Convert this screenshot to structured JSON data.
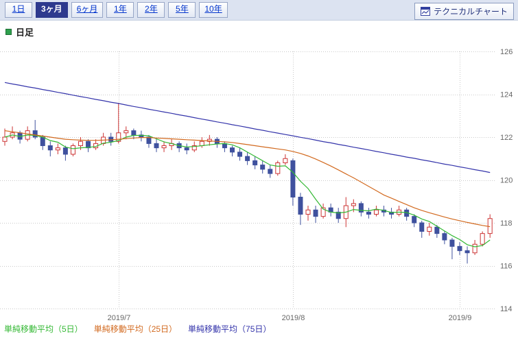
{
  "toolbar": {
    "tabs": [
      {
        "label": "1日",
        "selected": false
      },
      {
        "label": "3ヶ月",
        "selected": true
      },
      {
        "label": "6ヶ月",
        "selected": false
      },
      {
        "label": "1年",
        "selected": false
      },
      {
        "label": "2年",
        "selected": false
      },
      {
        "label": "5年",
        "selected": false
      },
      {
        "label": "10年",
        "selected": false
      }
    ],
    "technical_chart_button": "テクニカルチャート"
  },
  "chart_header": {
    "label": "日足"
  },
  "legend": [
    {
      "label": "単純移動平均（5日）",
      "color": "#33b833"
    },
    {
      "label": "単純移動平均（25日）",
      "color": "#d2691e"
    },
    {
      "label": "単純移動平均（75日）",
      "color": "#3333aa"
    }
  ],
  "chart_data": {
    "type": "candlestick",
    "title": "日足",
    "xlabel": "",
    "ylabel": "",
    "ylim": [
      114,
      126
    ],
    "yticks": [
      114,
      116,
      118,
      120,
      122,
      124,
      126
    ],
    "y_axis_side": "right",
    "grid": "dotted",
    "x_gridlines": [
      {
        "index": 15,
        "label": "2019/7"
      },
      {
        "index": 38,
        "label": "2019/8"
      },
      {
        "index": 60,
        "label": "2019/9"
      }
    ],
    "up_color": "#cc3333",
    "down_color": "#3f519e",
    "candles": [
      [
        121.8,
        122.4,
        121.6,
        122.0
      ],
      [
        122.0,
        122.5,
        121.9,
        122.2
      ],
      [
        122.2,
        122.3,
        121.7,
        121.9
      ],
      [
        121.9,
        122.5,
        121.8,
        122.3
      ],
      [
        122.3,
        122.8,
        121.9,
        122.0
      ],
      [
        122.0,
        122.1,
        121.4,
        121.6
      ],
      [
        121.6,
        121.8,
        121.1,
        121.4
      ],
      [
        121.4,
        121.7,
        121.2,
        121.5
      ],
      [
        121.5,
        121.6,
        120.9,
        121.2
      ],
      [
        121.2,
        121.7,
        121.1,
        121.6
      ],
      [
        121.6,
        122.0,
        121.4,
        121.8
      ],
      [
        121.8,
        121.9,
        121.3,
        121.5
      ],
      [
        121.5,
        121.9,
        121.4,
        121.7
      ],
      [
        121.7,
        122.2,
        121.6,
        122.0
      ],
      [
        122.0,
        122.2,
        121.6,
        121.8
      ],
      [
        121.8,
        123.6,
        121.7,
        122.2
      ],
      [
        122.2,
        122.5,
        121.9,
        122.3
      ],
      [
        122.3,
        122.4,
        121.9,
        122.1
      ],
      [
        122.1,
        122.3,
        121.8,
        122.0
      ],
      [
        122.0,
        122.1,
        121.5,
        121.7
      ],
      [
        121.7,
        121.9,
        121.3,
        121.5
      ],
      [
        121.5,
        121.8,
        121.3,
        121.6
      ],
      [
        121.6,
        121.9,
        121.4,
        121.7
      ],
      [
        121.7,
        121.8,
        121.3,
        121.5
      ],
      [
        121.5,
        121.7,
        121.2,
        121.4
      ],
      [
        121.4,
        121.8,
        121.3,
        121.6
      ],
      [
        121.6,
        122.0,
        121.5,
        121.8
      ],
      [
        121.8,
        122.1,
        121.6,
        121.9
      ],
      [
        121.9,
        122.0,
        121.5,
        121.7
      ],
      [
        121.7,
        121.8,
        121.3,
        121.5
      ],
      [
        121.5,
        121.6,
        121.1,
        121.3
      ],
      [
        121.3,
        121.5,
        120.9,
        121.1
      ],
      [
        121.1,
        121.3,
        120.7,
        120.9
      ],
      [
        120.9,
        121.1,
        120.5,
        120.7
      ],
      [
        120.7,
        120.9,
        120.3,
        120.5
      ],
      [
        120.5,
        120.7,
        120.1,
        120.3
      ],
      [
        120.3,
        120.9,
        120.2,
        120.8
      ],
      [
        120.8,
        121.2,
        120.7,
        121.0
      ],
      [
        120.9,
        121.0,
        118.8,
        119.2
      ],
      [
        119.2,
        119.4,
        117.9,
        118.4
      ],
      [
        118.4,
        118.8,
        118.1,
        118.6
      ],
      [
        118.6,
        118.8,
        118.0,
        118.3
      ],
      [
        118.3,
        118.9,
        118.2,
        118.7
      ],
      [
        118.7,
        118.9,
        118.3,
        118.5
      ],
      [
        118.5,
        118.7,
        118.0,
        118.2
      ],
      [
        118.2,
        119.2,
        117.8,
        118.8
      ],
      [
        118.8,
        119.1,
        118.5,
        118.9
      ],
      [
        118.9,
        119.0,
        118.3,
        118.5
      ],
      [
        118.5,
        118.7,
        118.2,
        118.4
      ],
      [
        118.4,
        118.8,
        118.3,
        118.6
      ],
      [
        118.6,
        118.8,
        118.3,
        118.5
      ],
      [
        118.5,
        118.7,
        118.2,
        118.4
      ],
      [
        118.4,
        118.8,
        118.3,
        118.6
      ],
      [
        118.6,
        118.7,
        118.1,
        118.3
      ],
      [
        118.3,
        118.4,
        117.8,
        118.0
      ],
      [
        118.0,
        118.1,
        117.3,
        117.6
      ],
      [
        117.6,
        118.0,
        117.4,
        117.8
      ],
      [
        117.8,
        117.9,
        117.3,
        117.5
      ],
      [
        117.5,
        117.6,
        117.0,
        117.2
      ],
      [
        117.2,
        117.3,
        116.3,
        116.9
      ],
      [
        116.9,
        117.1,
        116.5,
        116.7
      ],
      [
        116.7,
        116.9,
        116.1,
        116.6
      ],
      [
        116.6,
        117.2,
        116.5,
        117.0
      ],
      [
        117.0,
        117.6,
        116.9,
        117.5
      ],
      [
        117.5,
        118.4,
        117.3,
        118.2
      ]
    ],
    "series": [
      {
        "name": "単純移動平均（5日）",
        "color": "#33b833",
        "values": [
          122.0,
          122.1,
          122.03,
          122.1,
          122.08,
          122.0,
          121.84,
          121.76,
          121.54,
          121.46,
          121.5,
          121.52,
          121.56,
          121.72,
          121.76,
          121.84,
          122.0,
          122.08,
          122.08,
          122.06,
          121.92,
          121.78,
          121.7,
          121.6,
          121.54,
          121.56,
          121.6,
          121.64,
          121.68,
          121.7,
          121.64,
          121.5,
          121.3,
          121.1,
          120.9,
          120.7,
          120.64,
          120.66,
          120.36,
          119.94,
          119.6,
          119.1,
          118.64,
          118.5,
          118.46,
          118.5,
          118.62,
          118.58,
          118.56,
          118.64,
          118.58,
          118.48,
          118.5,
          118.48,
          118.36,
          118.18,
          118.06,
          117.84,
          117.62,
          117.4,
          117.22,
          116.98,
          116.88,
          116.94,
          117.2
        ]
      },
      {
        "name": "単純移動平均（25日）",
        "color": "#d2691e",
        "values": [
          122.3,
          122.25,
          122.2,
          122.15,
          122.1,
          122.05,
          122.0,
          121.95,
          121.9,
          121.88,
          121.86,
          121.85,
          121.85,
          121.86,
          121.88,
          121.9,
          121.93,
          121.96,
          121.98,
          121.98,
          121.96,
          121.94,
          121.92,
          121.9,
          121.88,
          121.86,
          121.84,
          121.82,
          121.8,
          121.78,
          121.75,
          121.7,
          121.65,
          121.6,
          121.55,
          121.5,
          121.45,
          121.4,
          121.33,
          121.24,
          121.12,
          120.98,
          120.82,
          120.65,
          120.47,
          120.28,
          120.1,
          119.9,
          119.7,
          119.5,
          119.3,
          119.15,
          119.0,
          118.85,
          118.7,
          118.58,
          118.47,
          118.37,
          118.27,
          118.18,
          118.1,
          118.02,
          117.95,
          117.88,
          117.82
        ]
      },
      {
        "name": "単純移動平均（75日）",
        "color": "#3333aa",
        "values": [
          124.55,
          124.48,
          124.42,
          124.35,
          124.29,
          124.22,
          124.16,
          124.09,
          124.03,
          123.96,
          123.89,
          123.83,
          123.76,
          123.7,
          123.63,
          123.57,
          123.5,
          123.43,
          123.37,
          123.3,
          123.24,
          123.17,
          123.11,
          123.04,
          122.98,
          122.91,
          122.84,
          122.78,
          122.71,
          122.65,
          122.58,
          122.52,
          122.45,
          122.38,
          122.32,
          122.25,
          122.19,
          122.12,
          122.06,
          121.99,
          121.93,
          121.86,
          121.79,
          121.73,
          121.66,
          121.6,
          121.53,
          121.47,
          121.4,
          121.33,
          121.27,
          121.2,
          121.14,
          121.07,
          121.01,
          120.94,
          120.88,
          120.81,
          120.74,
          120.68,
          120.61,
          120.55,
          120.48,
          120.42,
          120.35
        ]
      }
    ]
  }
}
